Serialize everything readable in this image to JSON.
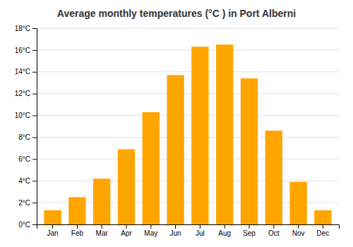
{
  "chart_data": {
    "type": "bar",
    "title": "Average monthly temperatures (°C ) in Port Alberni",
    "categories": [
      "Jan",
      "Feb",
      "Mar",
      "Apr",
      "May",
      "Jun",
      "Jul",
      "Aug",
      "Sep",
      "Oct",
      "Nov",
      "Dec"
    ],
    "values": [
      1.3,
      2.5,
      4.2,
      6.9,
      10.3,
      13.7,
      16.3,
      16.5,
      13.4,
      8.6,
      3.9,
      1.3
    ],
    "color": "#FFA500",
    "ylim": [
      0,
      18
    ],
    "yticks": [
      {
        "value": 0,
        "label": "0°C"
      },
      {
        "value": 2,
        "label": "2°C"
      },
      {
        "value": 4,
        "label": "4°C"
      },
      {
        "value": 6,
        "label": "6°C"
      },
      {
        "value": 8,
        "label": "8°C"
      },
      {
        "value": 10,
        "label": "10°C"
      },
      {
        "value": 12,
        "label": "12°C"
      },
      {
        "value": 14,
        "label": "14°C"
      },
      {
        "value": 16,
        "label": "16°C"
      },
      {
        "value": 18,
        "label": "18°C"
      }
    ],
    "grid": true
  }
}
